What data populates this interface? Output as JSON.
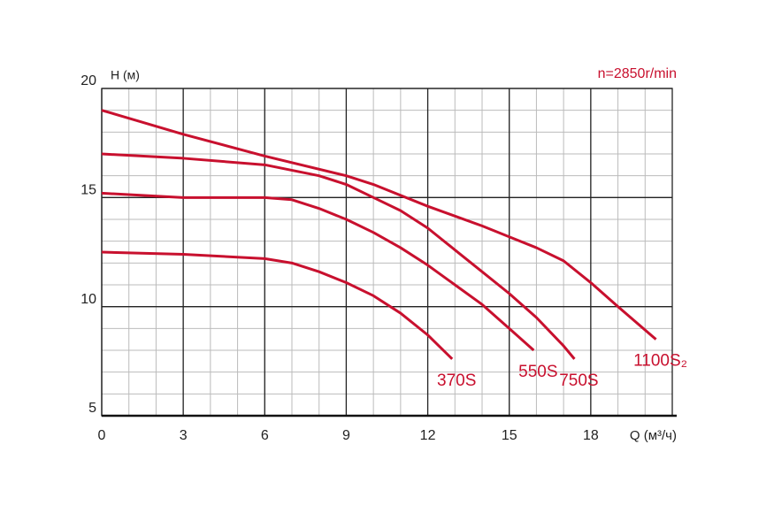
{
  "chart_data": {
    "type": "line",
    "x_label": "Q (м³/ч)",
    "y_label": "H (м)",
    "annotation": "n=2850r/min",
    "xlim": [
      0,
      21
    ],
    "ylim": [
      5,
      20
    ],
    "xticks": [
      0,
      3,
      6,
      9,
      12,
      15,
      18
    ],
    "yticks": [
      5,
      10,
      15,
      20
    ],
    "grid": true,
    "series": [
      {
        "name": "370S",
        "color": "#c8102e",
        "x": [
          0,
          3,
          6,
          7,
          8,
          9,
          10,
          11,
          12,
          12.9
        ],
        "values": [
          12.5,
          12.4,
          12.2,
          12.0,
          11.6,
          11.1,
          10.5,
          9.7,
          8.7,
          7.6
        ]
      },
      {
        "name": "550S",
        "color": "#c8102e",
        "x": [
          0,
          3,
          6,
          7,
          8,
          9,
          10,
          11,
          12,
          13,
          14,
          15,
          15.9
        ],
        "values": [
          15.2,
          15.0,
          15.0,
          14.9,
          14.5,
          14.0,
          13.4,
          12.7,
          11.9,
          11.0,
          10.1,
          9.0,
          8.0
        ]
      },
      {
        "name": "750S",
        "color": "#c8102e",
        "x": [
          0,
          3,
          6,
          8,
          9,
          10,
          11,
          12,
          13,
          14,
          15,
          16,
          17,
          17.4
        ],
        "values": [
          17.0,
          16.8,
          16.5,
          16.0,
          15.6,
          15.0,
          14.4,
          13.6,
          12.6,
          11.6,
          10.6,
          9.5,
          8.2,
          7.6
        ]
      },
      {
        "name": "1100S₂",
        "color": "#c8102e",
        "x": [
          0,
          3,
          6,
          9,
          10,
          12,
          14,
          15,
          16,
          17,
          18,
          19,
          20.4
        ],
        "values": [
          19.0,
          17.9,
          16.9,
          16.0,
          15.6,
          14.6,
          13.7,
          13.2,
          12.7,
          12.1,
          11.1,
          10.0,
          8.5
        ]
      }
    ]
  }
}
